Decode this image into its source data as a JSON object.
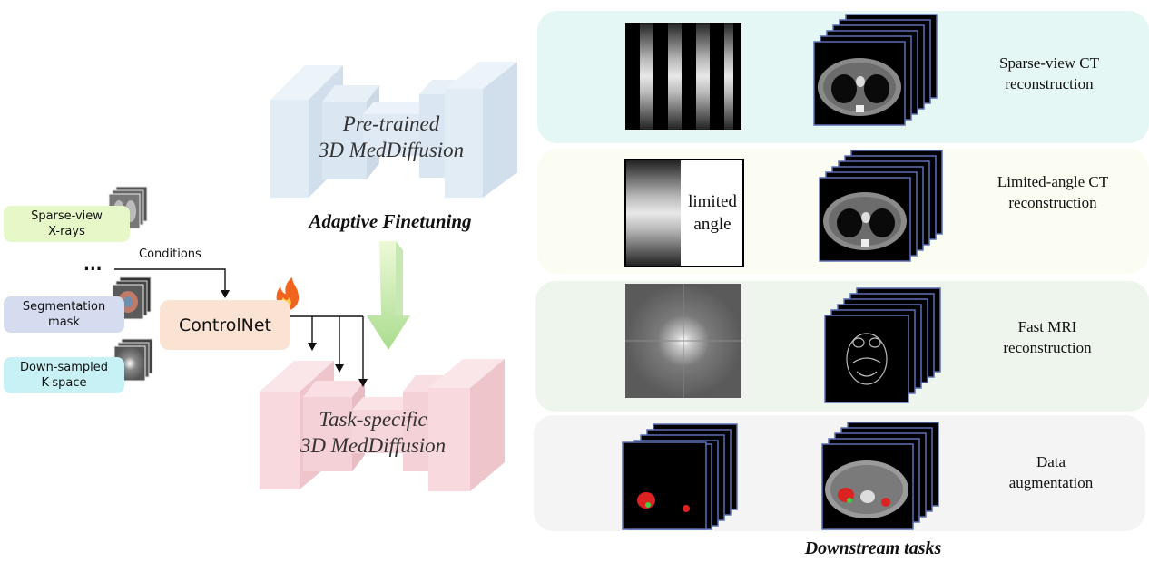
{
  "inputs": [
    {
      "line1": "Sparse-view",
      "line2": "X-rays",
      "color": "#e6f8c8"
    },
    {
      "line1": "Segmentation",
      "line2": "mask",
      "color": "#d5dcef"
    },
    {
      "line1": "Down-sampled",
      "line2": "K-space",
      "color": "#c7f1f4"
    }
  ],
  "ellipsis": "...",
  "conditions_label": "Conditions",
  "controlnet": {
    "label": "ControlNet",
    "color": "#fbe3d4",
    "icon": "fire-icon"
  },
  "pretrained": {
    "line1": "Pre-trained",
    "line2": "3D MedDiffusion",
    "color": "#dce9f5"
  },
  "adaptive_label": "Adaptive Finetuning",
  "taskspecific": {
    "line1": "Task-specific",
    "line2": "3D MedDiffusion",
    "color": "#f8d7dc"
  },
  "downstream_label": "Downstream tasks",
  "tasks": [
    {
      "line1": "Sparse-view CT",
      "line2": "reconstruction",
      "bg": "#e4f7f5"
    },
    {
      "line1": "Limited-angle CT",
      "line2": "reconstruction",
      "bg": "#fbfcf2"
    },
    {
      "line1": "Fast MRI",
      "line2": "reconstruction",
      "bg": "#edf5ec"
    },
    {
      "line1": "Data",
      "line2": "augmentation",
      "bg": "#f4f4f4"
    }
  ],
  "limited_angle_text": {
    "line1": "limited",
    "line2": "angle"
  }
}
